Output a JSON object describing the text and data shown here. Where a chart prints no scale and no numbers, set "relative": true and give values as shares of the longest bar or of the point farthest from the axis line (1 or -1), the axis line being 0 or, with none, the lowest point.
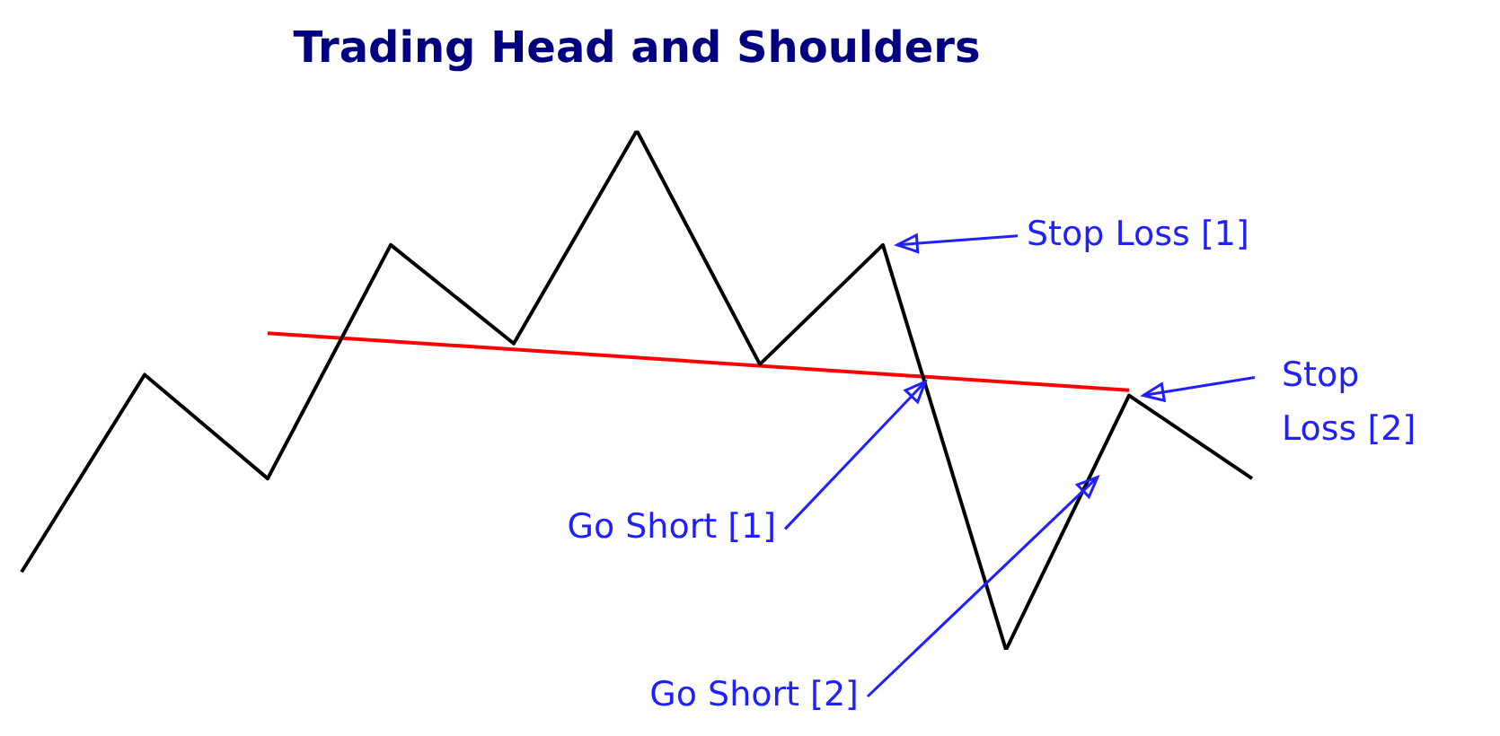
{
  "chart_data": {
    "type": "line",
    "title": "Trading Head and Shoulders",
    "relative": true,
    "categories": [
      null,
      null,
      null,
      null,
      null,
      null,
      null,
      null,
      null,
      null,
      null
    ],
    "series": [
      {
        "color": "#000000",
        "values": [
          0.15,
          0.53,
          0.33,
          0.78,
          0.59,
          1,
          0.55,
          0.78,
          0,
          0.49,
          0.33
        ]
      },
      {
        "color": "#ff0000",
        "values": [
          null,
          null,
          0.61,
          null,
          null,
          null,
          null,
          null,
          null,
          0.5,
          null
        ]
      }
    ],
    "annotations": [
      "Stop Loss [1]",
      "Go Short [1]",
      "Go Short [2]",
      "Stop Loss [2]"
    ],
    "marker": "none",
    "line_style": "solid",
    "legend": false
  }
}
